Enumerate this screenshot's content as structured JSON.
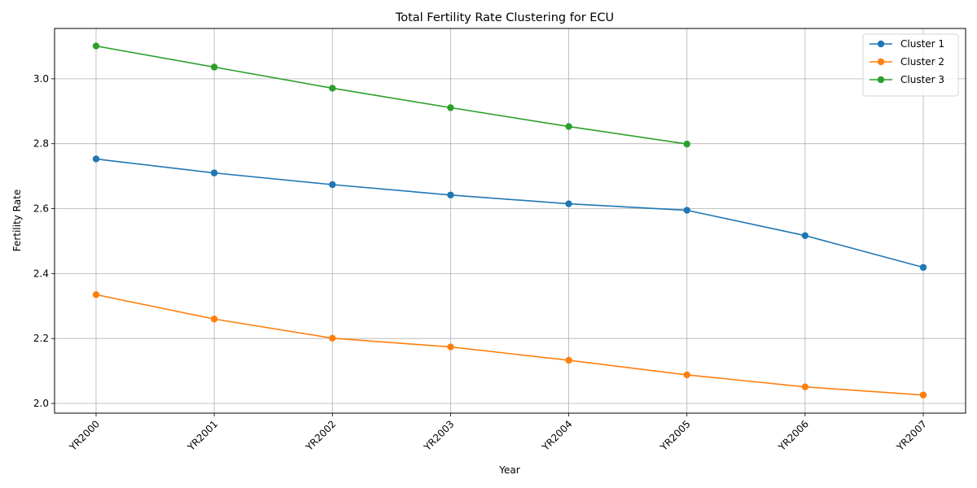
{
  "chart_data": {
    "type": "line",
    "title": "Total Fertility Rate Clustering for ECU",
    "xlabel": "Year",
    "ylabel": "Fertility Rate",
    "categories": [
      "YR2000",
      "YR2001",
      "YR2002",
      "YR2003",
      "YR2004",
      "YR2005",
      "YR2006",
      "YR2007"
    ],
    "ylim": [
      1.97,
      3.155
    ],
    "yticks": [
      2.0,
      2.2,
      2.4,
      2.6,
      2.8,
      3.0
    ],
    "ytick_labels": [
      "2.0",
      "2.2",
      "2.4",
      "2.6",
      "2.8",
      "3.0"
    ],
    "grid": true,
    "legend_position": "top-right",
    "series": [
      {
        "name": "Cluster 1",
        "color": "#1f77b4",
        "values": [
          2.753,
          2.71,
          2.674,
          2.642,
          2.615,
          2.595,
          2.517,
          2.419
        ]
      },
      {
        "name": "Cluster 2",
        "color": "#ff7f0e",
        "values": [
          2.335,
          2.26,
          2.201,
          2.174,
          2.133,
          2.088,
          2.051,
          2.026
        ]
      },
      {
        "name": "Cluster 3",
        "color": "#2ca02c",
        "values": [
          3.101,
          3.036,
          2.971,
          2.911,
          2.853,
          2.799,
          null,
          null
        ]
      }
    ]
  }
}
